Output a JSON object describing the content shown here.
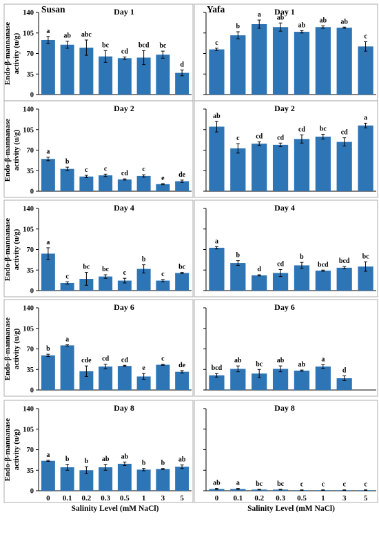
{
  "chart_data": {
    "type": "bar",
    "cultivars": [
      "Susan",
      "Yafa"
    ],
    "categories": [
      "0",
      "0.1",
      "0.2",
      "0.3",
      "0.5",
      "1",
      "3",
      "5"
    ],
    "xlabel": "Salinity Level (mM NaCl)",
    "ylabel_line1": "Endo-β-mannanase",
    "ylabel_line2": "activity (u/g)",
    "ylim": [
      0,
      140
    ],
    "yticks": [
      "0",
      "35",
      "70",
      "105",
      "140"
    ],
    "panels": [
      {
        "day": "Day 1",
        "cultivar": "Susan",
        "values": [
          93,
          85,
          80,
          65,
          62,
          63,
          68,
          37
        ],
        "errors": [
          6,
          6,
          13,
          10,
          2,
          12,
          6,
          5
        ],
        "letters": [
          "a",
          "ab",
          "abc",
          "bc",
          "cd",
          "bcd",
          "bc",
          "d"
        ]
      },
      {
        "day": "Day 1",
        "cultivar": "Yafa",
        "values": [
          77,
          101,
          120,
          115,
          107,
          115,
          114,
          82
        ],
        "errors": [
          2,
          6,
          7,
          7,
          2,
          2,
          1,
          8
        ],
        "letters": [
          "c",
          "b",
          "a",
          "ab",
          "ab",
          "ab",
          "ab",
          "c"
        ]
      },
      {
        "day": "Day 2",
        "cultivar": "Susan",
        "values": [
          55,
          38,
          25,
          27,
          20,
          26,
          12,
          17
        ],
        "errors": [
          3,
          3,
          2,
          2,
          1,
          2,
          1,
          2
        ],
        "letters": [
          "a",
          "b",
          "c",
          "c",
          "cd",
          "c",
          "e",
          "de"
        ]
      },
      {
        "day": "Day 2",
        "cultivar": "Yafa",
        "values": [
          110,
          73,
          81,
          79,
          89,
          93,
          84,
          112
        ],
        "errors": [
          9,
          8,
          3,
          3,
          7,
          4,
          7,
          4
        ],
        "letters": [
          "ab",
          "c",
          "cd",
          "cd",
          "cd",
          "bc",
          "cd",
          "a"
        ]
      },
      {
        "day": "Day 4",
        "cultivar": "Susan",
        "values": [
          63,
          13,
          20,
          24,
          17,
          37,
          17,
          30
        ],
        "errors": [
          10,
          2,
          11,
          3,
          4,
          7,
          2,
          1
        ],
        "letters": [
          "a",
          "c",
          "bc",
          "bc",
          "c",
          "b",
          "c",
          "bc"
        ]
      },
      {
        "day": "Day 4",
        "cultivar": "Yafa",
        "values": [
          73,
          47,
          26,
          30,
          43,
          34,
          39,
          41
        ],
        "errors": [
          2,
          4,
          1,
          6,
          5,
          1,
          2,
          8
        ],
        "letters": [
          "a",
          "b",
          "d",
          "cd",
          "b",
          "bcd",
          "bcd",
          "bc"
        ]
      },
      {
        "day": "Day 6",
        "cultivar": "Susan",
        "values": [
          59,
          76,
          32,
          40,
          41,
          23,
          43,
          31
        ],
        "errors": [
          2,
          1,
          9,
          4,
          1,
          5,
          1,
          2
        ],
        "letters": [
          "b",
          "a",
          "cde",
          "cd",
          "cd",
          "e",
          "c",
          "de"
        ]
      },
      {
        "day": "Day 6",
        "cultivar": "Yafa",
        "values": [
          25,
          36,
          28,
          36,
          33,
          40,
          20,
          0
        ],
        "errors": [
          3,
          5,
          7,
          5,
          1,
          3,
          4,
          0
        ],
        "letters": [
          "bcd",
          "ab",
          "bc",
          "ab",
          "ab",
          "a",
          "d",
          ""
        ]
      },
      {
        "day": "Day 8",
        "cultivar": "Susan",
        "values": [
          51,
          40,
          35,
          40,
          46,
          36,
          37,
          41
        ],
        "errors": [
          1,
          5,
          6,
          5,
          3,
          2,
          1,
          3
        ],
        "letters": [
          "a",
          "b",
          "b",
          "ab",
          "ab",
          "b",
          "b",
          "ab"
        ]
      },
      {
        "day": "Day 8",
        "cultivar": "Yafa",
        "values": [
          3,
          3,
          2,
          2,
          1,
          1,
          1,
          1
        ],
        "errors": [
          1,
          1,
          0.5,
          0.5,
          0.5,
          0.5,
          0.5,
          0.5
        ],
        "letters": [
          "ab",
          "a",
          "bc",
          "bc",
          "c",
          "c",
          "c",
          "c"
        ]
      }
    ]
  }
}
